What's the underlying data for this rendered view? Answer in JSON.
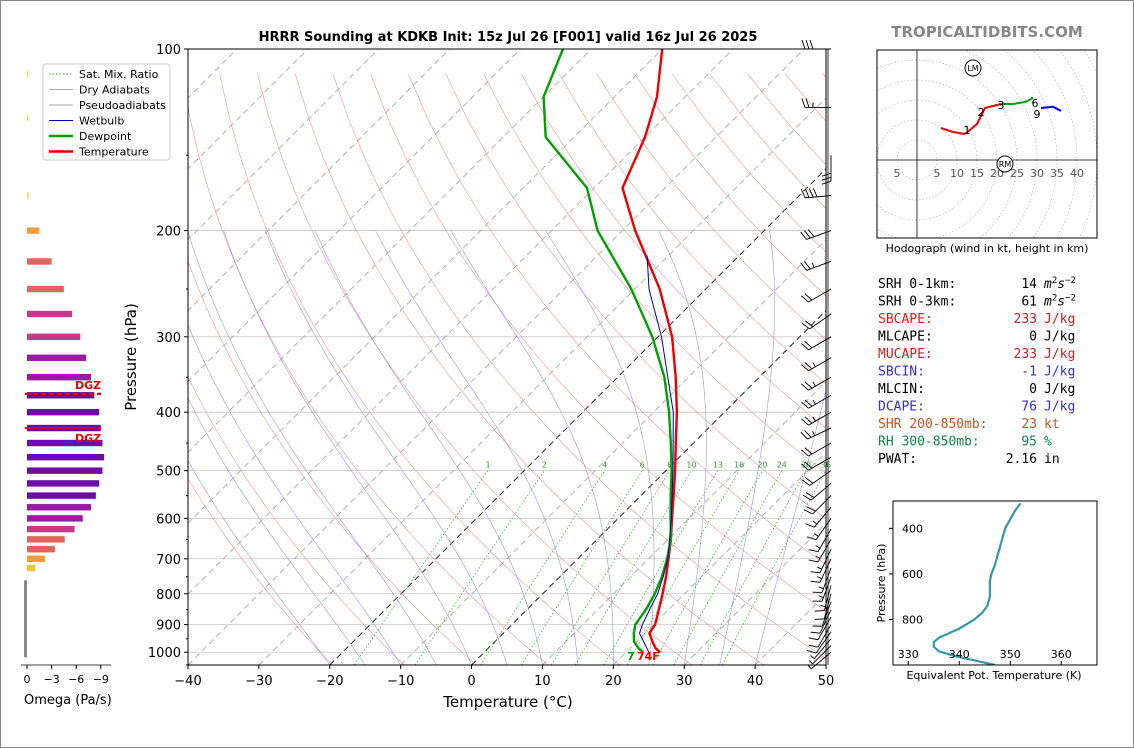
{
  "header": {
    "title": "HRRR Sounding at KDKB Init: 15z Jul 26 [F001] valid 16z Jul 26 2025",
    "watermark": "TROPICALTIDBITS.COM"
  },
  "legend": {
    "items": [
      {
        "label": "Sat. Mix. Ratio",
        "color": "#3a9a3a",
        "style": "dotted"
      },
      {
        "label": "Dry Adiabats",
        "color": "#aaaaaa",
        "style": "solid"
      },
      {
        "label": "Pseudoadiabats",
        "color": "#aaaaaa",
        "style": "solid"
      },
      {
        "label": "Wetbulb",
        "color": "#0000aa",
        "style": "solid"
      },
      {
        "label": "Dewpoint",
        "color": "#00a000",
        "style": "solid"
      },
      {
        "label": "Temperature",
        "color": "#ee0000",
        "style": "solid"
      }
    ]
  },
  "chart_data": [
    {
      "type": "line",
      "name": "skewt",
      "xlabel": "Temperature (°C)",
      "ylabel": "Pressure (hPa)",
      "xlim": [
        -40,
        50
      ],
      "ylim": [
        1050,
        100
      ],
      "log_y": true,
      "skew": true,
      "xticks": [
        -40,
        -30,
        -20,
        -10,
        0,
        10,
        20,
        30,
        40,
        50
      ],
      "yticks": [
        100,
        200,
        300,
        400,
        500,
        600,
        700,
        800,
        900,
        1000
      ],
      "mixing_ratio_labels": [
        "1",
        "2",
        "4",
        "6",
        "8",
        "10",
        "13",
        "16",
        "20",
        "24",
        "30",
        "36"
      ],
      "mixing_ratio_values": [
        1,
        2,
        4,
        6,
        8,
        10,
        13,
        16,
        20,
        24,
        30,
        36
      ],
      "surface_label": "74F",
      "surface_dew_label": "7",
      "series": [
        {
          "name": "Temperature",
          "color": "#ee0000",
          "points": [
            [
              1000,
              24.8
            ],
            [
              985,
              23.6
            ],
            [
              960,
              22.2
            ],
            [
              930,
              20.6
            ],
            [
              900,
              20.2
            ],
            [
              850,
              18.6
            ],
            [
              800,
              16.9
            ],
            [
              750,
              15.0
            ],
            [
              700,
              12.8
            ],
            [
              650,
              10.4
            ],
            [
              600,
              7.6
            ],
            [
              550,
              4.6
            ],
            [
              500,
              1.3
            ],
            [
              450,
              -2.5
            ],
            [
              400,
              -6.7
            ],
            [
              350,
              -11.8
            ],
            [
              300,
              -18.0
            ],
            [
              250,
              -26.5
            ],
            [
              200,
              -38.2
            ],
            [
              170,
              -46.0
            ],
            [
              140,
              -50.0
            ],
            [
              120,
              -54.0
            ],
            [
              100,
              -60.0
            ]
          ]
        },
        {
          "name": "Dewpoint",
          "color": "#00a000",
          "points": [
            [
              1000,
              22.4
            ],
            [
              985,
              21.2
            ],
            [
              960,
              19.6
            ],
            [
              930,
              18.4
            ],
            [
              900,
              17.4
            ],
            [
              850,
              16.8
            ],
            [
              800,
              15.8
            ],
            [
              750,
              14.4
            ],
            [
              700,
              12.6
            ],
            [
              650,
              10.4
            ],
            [
              600,
              7.4
            ],
            [
              550,
              4.2
            ],
            [
              500,
              0.8
            ],
            [
              450,
              -3.2
            ],
            [
              400,
              -7.8
            ],
            [
              350,
              -13.4
            ],
            [
              300,
              -20.8
            ],
            [
              250,
              -30.5
            ],
            [
              200,
              -43.5
            ],
            [
              170,
              -51.0
            ],
            [
              140,
              -64.0
            ],
            [
              120,
              -70.0
            ],
            [
              100,
              -74.0
            ]
          ]
        },
        {
          "name": "Wetbulb",
          "color": "#0000aa",
          "points": [
            [
              1000,
              23.2
            ],
            [
              930,
              19.2
            ],
            [
              900,
              18.4
            ],
            [
              850,
              17.3
            ],
            [
              800,
              16.2
            ],
            [
              750,
              14.6
            ],
            [
              700,
              12.7
            ],
            [
              600,
              7.5
            ],
            [
              500,
              1.0
            ],
            [
              400,
              -7.2
            ],
            [
              300,
              -19.5
            ],
            [
              250,
              -28.0
            ],
            [
              220,
              -33.0
            ]
          ]
        }
      ],
      "wind_barbs": [
        {
          "p": 100,
          "spd": 30,
          "dir": 270
        },
        {
          "p": 125,
          "spd": 25,
          "dir": 270
        },
        {
          "p": 150,
          "spd": 30,
          "dir": 180
        },
        {
          "p": 175,
          "spd": 40,
          "dir": 265
        },
        {
          "p": 200,
          "spd": 30,
          "dir": 250
        },
        {
          "p": 225,
          "spd": 25,
          "dir": 250
        },
        {
          "p": 250,
          "spd": 20,
          "dir": 240
        },
        {
          "p": 275,
          "spd": 20,
          "dir": 235
        },
        {
          "p": 300,
          "spd": 20,
          "dir": 240
        },
        {
          "p": 325,
          "spd": 25,
          "dir": 240
        },
        {
          "p": 350,
          "spd": 25,
          "dir": 240
        },
        {
          "p": 375,
          "spd": 25,
          "dir": 240
        },
        {
          "p": 400,
          "spd": 25,
          "dir": 240
        },
        {
          "p": 425,
          "spd": 25,
          "dir": 245
        },
        {
          "p": 450,
          "spd": 20,
          "dir": 240
        },
        {
          "p": 475,
          "spd": 20,
          "dir": 240
        },
        {
          "p": 500,
          "spd": 20,
          "dir": 235
        },
        {
          "p": 525,
          "spd": 20,
          "dir": 230
        },
        {
          "p": 550,
          "spd": 20,
          "dir": 225
        },
        {
          "p": 575,
          "spd": 15,
          "dir": 220
        },
        {
          "p": 600,
          "spd": 15,
          "dir": 215
        },
        {
          "p": 625,
          "spd": 15,
          "dir": 210
        },
        {
          "p": 650,
          "spd": 15,
          "dir": 210
        },
        {
          "p": 675,
          "spd": 15,
          "dir": 205
        },
        {
          "p": 700,
          "spd": 15,
          "dir": 205
        },
        {
          "p": 725,
          "spd": 15,
          "dir": 200
        },
        {
          "p": 750,
          "spd": 15,
          "dir": 200
        },
        {
          "p": 775,
          "spd": 15,
          "dir": 195
        },
        {
          "p": 800,
          "spd": 10,
          "dir": 195
        },
        {
          "p": 825,
          "spd": 10,
          "dir": 200
        },
        {
          "p": 850,
          "spd": 10,
          "dir": 205
        },
        {
          "p": 875,
          "spd": 10,
          "dir": 210
        },
        {
          "p": 900,
          "spd": 10,
          "dir": 210
        },
        {
          "p": 925,
          "spd": 10,
          "dir": 215
        },
        {
          "p": 950,
          "spd": 5,
          "dir": 220
        },
        {
          "p": 975,
          "spd": 5,
          "dir": 225
        },
        {
          "p": 1000,
          "spd": 5,
          "dir": 230
        }
      ]
    },
    {
      "type": "bar",
      "name": "omega",
      "xlabel": "Omega (Pa/s)",
      "xticks": [
        0,
        -3,
        -6,
        -9
      ],
      "xtick_labels": [
        "0",
        "−3",
        "−6",
        "−9"
      ],
      "dgz_label": "DGZ",
      "dgz_top_p": 373,
      "dgz_bottom_p": 425,
      "values": [
        {
          "p": 110,
          "v": -0.1
        },
        {
          "p": 130,
          "v": -0.1
        },
        {
          "p": 175,
          "v": -0.2
        },
        {
          "p": 200,
          "v": -1.5
        },
        {
          "p": 225,
          "v": -3.0
        },
        {
          "p": 250,
          "v": -4.5
        },
        {
          "p": 275,
          "v": -5.5
        },
        {
          "p": 300,
          "v": -6.5
        },
        {
          "p": 325,
          "v": -7.2
        },
        {
          "p": 350,
          "v": -7.8
        },
        {
          "p": 375,
          "v": -8.2
        },
        {
          "p": 400,
          "v": -8.8
        },
        {
          "p": 425,
          "v": -9.0
        },
        {
          "p": 450,
          "v": -9.2
        },
        {
          "p": 475,
          "v": -9.4
        },
        {
          "p": 500,
          "v": -9.2
        },
        {
          "p": 525,
          "v": -8.8
        },
        {
          "p": 550,
          "v": -8.4
        },
        {
          "p": 575,
          "v": -7.8
        },
        {
          "p": 600,
          "v": -6.8
        },
        {
          "p": 625,
          "v": -5.8
        },
        {
          "p": 650,
          "v": -4.6
        },
        {
          "p": 675,
          "v": -3.4
        },
        {
          "p": 700,
          "v": -2.2
        },
        {
          "p": 725,
          "v": -1.0
        }
      ]
    },
    {
      "type": "line",
      "name": "hodograph",
      "caption": "Hodograph (wind in kt, height in km)",
      "ring_labels": [
        "5",
        "5",
        "10",
        "15",
        "20",
        "25",
        "30",
        "35",
        "40"
      ],
      "ring_label_values": [
        -5,
        5,
        10,
        15,
        20,
        25,
        30,
        35,
        40
      ],
      "rings": [
        5,
        10,
        15,
        20,
        25,
        30,
        35,
        40,
        45,
        50
      ],
      "lm_label": "LM",
      "rm_label": "RM",
      "lm": [
        14,
        23
      ],
      "rm": [
        22,
        -1
      ],
      "segments": [
        {
          "color": "#ee0000",
          "points": [
            [
              6,
              8
            ],
            [
              9,
              7
            ],
            [
              12,
              6.5
            ]
          ]
        },
        {
          "color": "#ee0000",
          "points": [
            [
              12,
              6.5
            ],
            [
              15,
              9
            ],
            [
              17,
              13
            ],
            [
              19,
              13.5
            ],
            [
              21,
              14
            ]
          ]
        },
        {
          "color": "#00a000",
          "points": [
            [
              21,
              14
            ],
            [
              24,
              14
            ],
            [
              27,
              14.5
            ],
            [
              29,
              15.5
            ],
            [
              28.5,
              15.5
            ]
          ]
        },
        {
          "color": "#0000ee",
          "points": [
            [
              31,
              13
            ],
            [
              34,
              13.3
            ],
            [
              36,
              12.3
            ]
          ]
        }
      ],
      "height_labels": [
        {
          "label": "1",
          "u": 12.5,
          "v": 7.5
        },
        {
          "label": "2",
          "u": 16,
          "v": 12
        },
        {
          "label": "3",
          "u": 21,
          "v": 13.8
        },
        {
          "label": "6",
          "u": 29.5,
          "v": 14.3
        },
        {
          "label": "9",
          "u": 30,
          "v": 11.5
        }
      ]
    },
    {
      "type": "line",
      "name": "theta-e",
      "xlabel": "Equivalent Pot. Temperature (K)",
      "ylabel": "Pressure (hPa)",
      "xticks": [
        330,
        340,
        350,
        360
      ],
      "yticks": [
        400,
        600,
        800
      ],
      "xlim": [
        327,
        367
      ],
      "ylim": [
        1000,
        280
      ],
      "color": "#3399aa",
      "points": [
        [
          1000,
          347
        ],
        [
          980,
          343
        ],
        [
          960,
          339
        ],
        [
          940,
          336
        ],
        [
          920,
          335
        ],
        [
          900,
          335
        ],
        [
          880,
          336
        ],
        [
          860,
          338
        ],
        [
          840,
          340
        ],
        [
          820,
          341.5
        ],
        [
          800,
          343
        ],
        [
          770,
          344.5
        ],
        [
          740,
          345.5
        ],
        [
          700,
          346
        ],
        [
          660,
          346
        ],
        [
          630,
          346
        ],
        [
          600,
          346.3
        ],
        [
          560,
          347
        ],
        [
          520,
          347.5
        ],
        [
          480,
          348
        ],
        [
          440,
          348.5
        ],
        [
          400,
          349
        ],
        [
          360,
          350
        ],
        [
          320,
          351
        ],
        [
          290,
          352
        ]
      ]
    }
  ],
  "indices": {
    "rows": [
      {
        "label": "SRH 0-1km:",
        "value": "14",
        "unit": "m2s-2",
        "color": "#000000"
      },
      {
        "label": "SRH 0-3km:",
        "value": "61",
        "unit": "m2s-2",
        "color": "#000000"
      },
      {
        "label": "SBCAPE:",
        "value": "233",
        "unit": "J/kg",
        "color": "#cc2222"
      },
      {
        "label": "MLCAPE:",
        "value": "0",
        "unit": "J/kg",
        "color": "#000000"
      },
      {
        "label": "MUCAPE:",
        "value": "233",
        "unit": "J/kg",
        "color": "#cc2222"
      },
      {
        "label": "SBCIN:",
        "value": "-1",
        "unit": "J/kg",
        "color": "#3333cc"
      },
      {
        "label": "MLCIN:",
        "value": "0",
        "unit": "J/kg",
        "color": "#000000"
      },
      {
        "label": "DCAPE:",
        "value": "76",
        "unit": "J/kg",
        "color": "#3333cc"
      },
      {
        "label": "SHR 200-850mb:",
        "value": "23",
        "unit": "kt",
        "color": "#cc5522"
      },
      {
        "label": "RH 300-850mb:",
        "value": "95",
        "unit": "%",
        "color": "#118844"
      },
      {
        "label": "PWAT:",
        "value": "2.16",
        "unit": "in",
        "color": "#000000"
      }
    ]
  }
}
